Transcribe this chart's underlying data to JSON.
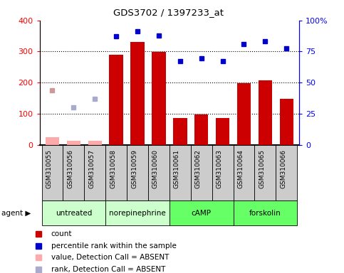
{
  "title": "GDS3702 / 1397233_at",
  "samples": [
    "GSM310055",
    "GSM310056",
    "GSM310057",
    "GSM310058",
    "GSM310059",
    "GSM310060",
    "GSM310061",
    "GSM310062",
    "GSM310063",
    "GSM310064",
    "GSM310065",
    "GSM310066"
  ],
  "count_present": [
    null,
    null,
    null,
    290,
    330,
    298,
    85,
    97,
    85,
    197,
    208,
    147
  ],
  "count_absent": [
    25,
    12,
    13,
    null,
    null,
    null,
    null,
    null,
    null,
    null,
    null,
    null
  ],
  "rank_present": [
    null,
    null,
    null,
    87.5,
    91.25,
    88.0,
    67.5,
    69.5,
    67.5,
    81.25,
    83.25,
    77.5
  ],
  "rank_absent_val": [
    43.75,
    null,
    null,
    null,
    null,
    null,
    null,
    null,
    null,
    null,
    null,
    null
  ],
  "rank_absent_rank": [
    null,
    30.0,
    36.75,
    null,
    null,
    null,
    null,
    null,
    null,
    null,
    null,
    null
  ],
  "agents": [
    {
      "label": "untreated",
      "start": 0,
      "end": 3
    },
    {
      "label": "norepinephrine",
      "start": 3,
      "end": 6
    },
    {
      "label": "cAMP",
      "start": 6,
      "end": 9
    },
    {
      "label": "forskolin",
      "start": 9,
      "end": 12
    }
  ],
  "agent_colors": [
    "#ccffcc",
    "#ccffcc",
    "#66ff66",
    "#66ff66"
  ],
  "ylim_left": [
    0,
    400
  ],
  "ylim_right": [
    0,
    100
  ],
  "yticks_left": [
    0,
    100,
    200,
    300,
    400
  ],
  "yticks_right": [
    0,
    25,
    50,
    75,
    100
  ],
  "ytick_labels_right": [
    "0",
    "25",
    "50",
    "75",
    "100%"
  ],
  "bar_color_present": "#cc0000",
  "bar_color_absent": "#ffaaaa",
  "dot_color_present": "#0000cc",
  "dot_color_absent_val": "#cc9999",
  "dot_color_absent_rank": "#aaaacc",
  "agent_bg_light": "#ccffcc",
  "agent_bg_dark": "#66ff66",
  "sample_bg_color": "#cccccc",
  "background_color": "#ffffff",
  "legend_items": [
    {
      "color": "#cc0000",
      "marker": "s",
      "label": "count"
    },
    {
      "color": "#0000cc",
      "marker": "s",
      "label": "percentile rank within the sample"
    },
    {
      "color": "#ffaaaa",
      "marker": "s",
      "label": "value, Detection Call = ABSENT"
    },
    {
      "color": "#aaaacc",
      "marker": "s",
      "label": "rank, Detection Call = ABSENT"
    }
  ]
}
